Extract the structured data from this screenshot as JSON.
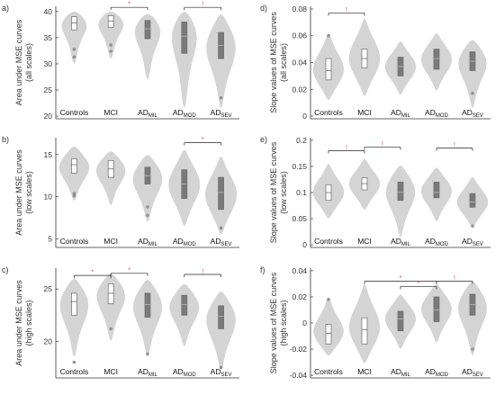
{
  "colors": {
    "violin": "#d4d4d4",
    "box": "#7a7a7a",
    "box_light": "#ffffff",
    "box_edge": "#6a6a6a",
    "axis": "#333333",
    "sig": "#e0404a",
    "bracket": "#222222"
  },
  "chart_data": [
    {
      "type": "violin",
      "panel": "a)",
      "ylabel": [
        "Area under MSE curves",
        "(all scales)"
      ],
      "categories": [
        {
          "base": "Controls",
          "sub": ""
        },
        {
          "base": "MCI",
          "sub": ""
        },
        {
          "base": "AD",
          "sub": "MIL"
        },
        {
          "base": "AD",
          "sub": "MOD"
        },
        {
          "base": "AD",
          "sub": "SEV"
        }
      ],
      "ylim": [
        19.5,
        41
      ],
      "yticks": [
        20,
        25,
        30,
        35,
        40
      ],
      "groups": [
        {
          "min": 30,
          "q1": 36.5,
          "median": 37.8,
          "q3": 39,
          "max": 40,
          "peak": 38.5,
          "light": true,
          "outliers": [
            31.3,
            32.8
          ]
        },
        {
          "min": 31,
          "q1": 37,
          "median": 38.2,
          "q3": 39.2,
          "max": 40,
          "peak": 38.6,
          "light": true,
          "outliers": [
            32.4,
            33.6
          ]
        },
        {
          "min": 27,
          "q1": 34.8,
          "median": 36.7,
          "q3": 38.3,
          "max": 39.6,
          "peak": 37.5,
          "light": false,
          "outliers": []
        },
        {
          "min": 21.5,
          "q1": 32,
          "median": 35.3,
          "q3": 38,
          "max": 40,
          "peak": 37.2,
          "light": false,
          "outliers": []
        },
        {
          "min": 21.5,
          "q1": 31,
          "median": 33.5,
          "q3": 36,
          "max": 39.5,
          "peak": 34.2,
          "light": false,
          "outliers": [
            23.5
          ]
        }
      ],
      "brackets": [
        {
          "from": 1,
          "to": 2,
          "y": 40.8,
          "label": "*"
        },
        {
          "from": 3,
          "to": 4,
          "y": 40.8,
          "label": "!"
        }
      ]
    },
    {
      "type": "violin",
      "panel": "b)",
      "ylabel": [
        "Area under MSE curves",
        "(low scales)"
      ],
      "categories": [
        {
          "base": "Controls",
          "sub": ""
        },
        {
          "base": "MCI",
          "sub": ""
        },
        {
          "base": "AD",
          "sub": "MIL"
        },
        {
          "base": "AD",
          "sub": "MOD"
        },
        {
          "base": "AD",
          "sub": "SEV"
        }
      ],
      "ylim": [
        4,
        17
      ],
      "yticks": [
        5,
        10,
        15
      ],
      "groups": [
        {
          "min": 9.5,
          "q1": 12.8,
          "median": 13.8,
          "q3": 14.5,
          "max": 16,
          "peak": 13.8,
          "light": true,
          "outliers": [
            10.1,
            10.4
          ]
        },
        {
          "min": 9,
          "q1": 12.3,
          "median": 13.3,
          "q3": 14.3,
          "max": 15.4,
          "peak": 13.5,
          "light": true,
          "outliers": []
        },
        {
          "min": 7,
          "q1": 11.5,
          "median": 12.5,
          "q3": 13.5,
          "max": 15,
          "peak": 12.6,
          "light": false,
          "outliers": [
            7.8,
            8.8
          ]
        },
        {
          "min": 6.5,
          "q1": 9.8,
          "median": 11.5,
          "q3": 13.2,
          "max": 15.6,
          "peak": 11.6,
          "light": false,
          "outliers": []
        },
        {
          "min": 5.5,
          "q1": 8.5,
          "median": 10.5,
          "q3": 12.3,
          "max": 14.8,
          "peak": 10.3,
          "light": false,
          "outliers": [
            6.3
          ]
        }
      ],
      "brackets": [
        {
          "from": 3,
          "to": 4,
          "y": 16.4,
          "label": "*"
        }
      ]
    },
    {
      "type": "violin",
      "panel": "c)",
      "ylabel": [
        "Area under MSE curves",
        "(high scales)"
      ],
      "categories": [
        {
          "base": "Controls",
          "sub": ""
        },
        {
          "base": "MCI",
          "sub": ""
        },
        {
          "base": "AD",
          "sub": "MIL"
        },
        {
          "base": "AD",
          "sub": "MOD"
        },
        {
          "base": "AD",
          "sub": "SEV"
        }
      ],
      "ylim": [
        16.5,
        27
      ],
      "yticks": [
        20,
        25
      ],
      "groups": [
        {
          "min": 18.5,
          "q1": 22.5,
          "median": 23.8,
          "q3": 24.6,
          "max": 26,
          "peak": 24,
          "light": true,
          "outliers": [
            18
          ]
        },
        {
          "min": 20,
          "q1": 23.6,
          "median": 24.6,
          "q3": 25.5,
          "max": 26.5,
          "peak": 24.8,
          "light": true,
          "outliers": [
            21.2
          ]
        },
        {
          "min": 18.5,
          "q1": 22.3,
          "median": 23.5,
          "q3": 24.6,
          "max": 25.9,
          "peak": 23.8,
          "light": false,
          "outliers": [
            18.8
          ]
        },
        {
          "min": 19.5,
          "q1": 22.5,
          "median": 23.5,
          "q3": 24.4,
          "max": 25.5,
          "peak": 23.6,
          "light": false,
          "outliers": []
        },
        {
          "min": 17.2,
          "q1": 21.2,
          "median": 22.4,
          "q3": 23.4,
          "max": 24.8,
          "peak": 22.5,
          "light": false,
          "outliers": [
            17.5
          ]
        }
      ],
      "brackets": [
        {
          "from": 0,
          "to": 1,
          "y": 26.3,
          "label": "*"
        },
        {
          "from": 1,
          "to": 2,
          "y": 26.5,
          "label": "*"
        },
        {
          "from": 3,
          "to": 4,
          "y": 26.4,
          "label": "!"
        }
      ]
    },
    {
      "type": "violin",
      "panel": "d)",
      "ylabel": [
        "Slope values of MSE curves",
        "(all scales)"
      ],
      "categories": [
        {
          "base": "Controls",
          "sub": ""
        },
        {
          "base": "MCI",
          "sub": ""
        },
        {
          "base": "AD",
          "sub": "MIL"
        },
        {
          "base": "AD",
          "sub": "MOD"
        },
        {
          "base": "AD",
          "sub": "SEV"
        }
      ],
      "ylim": [
        -0.002,
        0.082
      ],
      "yticks": [
        0,
        0.02,
        0.04,
        0.06,
        0.08
      ],
      "groups": [
        {
          "min": 0.012,
          "q1": 0.027,
          "median": 0.034,
          "q3": 0.043,
          "max": 0.062,
          "peak": 0.034,
          "light": true,
          "outliers": [
            0.06
          ]
        },
        {
          "min": 0.015,
          "q1": 0.036,
          "median": 0.043,
          "q3": 0.05,
          "max": 0.073,
          "peak": 0.043,
          "light": true,
          "outliers": []
        },
        {
          "min": 0.016,
          "q1": 0.03,
          "median": 0.037,
          "q3": 0.044,
          "max": 0.056,
          "peak": 0.037,
          "light": false,
          "outliers": []
        },
        {
          "min": 0.019,
          "q1": 0.035,
          "median": 0.043,
          "q3": 0.05,
          "max": 0.062,
          "peak": 0.043,
          "light": false,
          "outliers": []
        },
        {
          "min": 0.006,
          "q1": 0.034,
          "median": 0.041,
          "q3": 0.048,
          "max": 0.057,
          "peak": 0.043,
          "light": false,
          "outliers": [
            0.017
          ]
        }
      ],
      "brackets": [
        {
          "from": 0,
          "to": 1,
          "y": 0.077,
          "label": "!"
        }
      ]
    },
    {
      "type": "violin",
      "panel": "e)",
      "ylabel": [
        "Slope values of MSE curves",
        "(low scales)"
      ],
      "categories": [
        {
          "base": "Controls",
          "sub": ""
        },
        {
          "base": "MCI",
          "sub": ""
        },
        {
          "base": "AD",
          "sub": "MIL"
        },
        {
          "base": "AD",
          "sub": "MOD"
        },
        {
          "base": "AD",
          "sub": "SEV"
        }
      ],
      "ylim": [
        -0.005,
        0.205
      ],
      "yticks": [
        0,
        0.05,
        0.1,
        0.15,
        0.2
      ],
      "groups": [
        {
          "min": 0.05,
          "q1": 0.085,
          "median": 0.1,
          "q3": 0.115,
          "max": 0.155,
          "peak": 0.1,
          "light": true,
          "outliers": []
        },
        {
          "min": 0.067,
          "q1": 0.105,
          "median": 0.117,
          "q3": 0.128,
          "max": 0.165,
          "peak": 0.117,
          "light": true,
          "outliers": []
        },
        {
          "min": 0.015,
          "q1": 0.085,
          "median": 0.1,
          "q3": 0.12,
          "max": 0.152,
          "peak": 0.108,
          "light": false,
          "outliers": []
        },
        {
          "min": 0.045,
          "q1": 0.09,
          "median": 0.1,
          "q3": 0.12,
          "max": 0.148,
          "peak": 0.105,
          "light": false,
          "outliers": []
        },
        {
          "min": 0.033,
          "q1": 0.072,
          "median": 0.082,
          "q3": 0.098,
          "max": 0.13,
          "peak": 0.082,
          "light": false,
          "outliers": [
            0.036
          ]
        }
      ],
      "brackets": [
        {
          "from": 0,
          "to": 1,
          "y": 0.18,
          "label": "!"
        },
        {
          "from": 1,
          "to": 2,
          "y": 0.187,
          "label": "!"
        },
        {
          "from": 3,
          "to": 4,
          "y": 0.185,
          "label": "!"
        }
      ]
    },
    {
      "type": "violin",
      "panel": "f)",
      "ylabel": [
        "Slope values of MSE curves",
        "(high scales)"
      ],
      "categories": [
        {
          "base": "Controls",
          "sub": ""
        },
        {
          "base": "MCI",
          "sub": ""
        },
        {
          "base": "AD",
          "sub": "MIL"
        },
        {
          "base": "AD",
          "sub": "MOD"
        },
        {
          "base": "AD",
          "sub": "SEV"
        }
      ],
      "ylim": [
        -0.042,
        0.042
      ],
      "yticks": [
        -0.04,
        -0.02,
        0,
        0.02,
        0.04
      ],
      "groups": [
        {
          "min": -0.025,
          "q1": -0.016,
          "median": -0.008,
          "q3": -0.001,
          "max": 0.02,
          "peak": -0.008,
          "light": true,
          "outliers": [
            0.018
          ]
        },
        {
          "min": -0.031,
          "q1": -0.016,
          "median": -0.005,
          "q3": 0.004,
          "max": 0.03,
          "peak": -0.004,
          "light": true,
          "outliers": []
        },
        {
          "min": -0.02,
          "q1": -0.006,
          "median": 0.003,
          "q3": 0.009,
          "max": 0.022,
          "peak": 0.004,
          "light": false,
          "outliers": []
        },
        {
          "min": -0.015,
          "q1": 0.001,
          "median": 0.01,
          "q3": 0.02,
          "max": 0.03,
          "peak": 0.012,
          "light": false,
          "outliers": []
        },
        {
          "min": -0.025,
          "q1": 0.006,
          "median": 0.014,
          "q3": 0.022,
          "max": 0.032,
          "peak": 0.015,
          "light": false,
          "outliers": [
            -0.02
          ]
        }
      ],
      "brackets": [
        {
          "from": 1,
          "to": 3,
          "y": 0.032,
          "label": "*"
        },
        {
          "from": 3,
          "to": 4,
          "y": 0.032,
          "label": "!"
        },
        {
          "from": 2,
          "to": 3,
          "y": 0.028,
          "label": "*"
        }
      ]
    }
  ]
}
